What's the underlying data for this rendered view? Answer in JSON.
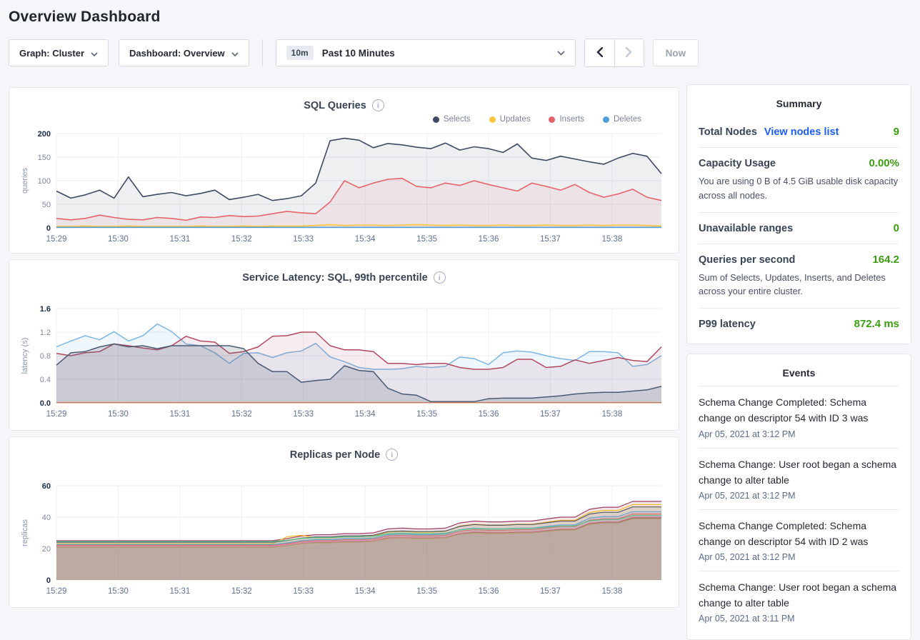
{
  "page": {
    "title": "Overview Dashboard"
  },
  "colors": {
    "accent_green": "#3a9f0f",
    "link_blue": "#1a5ef5",
    "title_navy": "#394455"
  },
  "controls": {
    "graph_selector": "Graph: Cluster",
    "dashboard_selector": "Dashboard: Overview",
    "time_window_badge": "10m",
    "time_window_label": "Past 10 Minutes",
    "now_label": "Now"
  },
  "chart_data": [
    {
      "type": "area",
      "title": "SQL Queries",
      "ylabel": "queries",
      "ymax": 200,
      "yticks": [
        "0",
        "50",
        "100",
        "150",
        "200"
      ],
      "xticks": [
        "15:29",
        "15:30",
        "15:31",
        "15:32",
        "15:33",
        "15:34",
        "15:35",
        "15:36",
        "15:37",
        "15:38"
      ],
      "xspan_minutes": 9.8,
      "line_width": 1.6,
      "legend": [
        {
          "label": "Selects",
          "color": "#3e4a63"
        },
        {
          "label": "Updates",
          "color": "#ffc53d"
        },
        {
          "label": "Inserts",
          "color": "#e5646a"
        },
        {
          "label": "Deletes",
          "color": "#509ed8"
        }
      ],
      "series": [
        {
          "name": "Selects",
          "color": "#3e4a63",
          "fill_opacity": 0.09,
          "values": [
            78,
            63,
            70,
            80,
            63,
            108,
            66,
            71,
            75,
            68,
            73,
            80,
            60,
            65,
            71,
            58,
            62,
            68,
            95,
            185,
            190,
            186,
            170,
            179,
            176,
            171,
            168,
            180,
            165,
            172,
            168,
            160,
            178,
            148,
            143,
            152,
            146,
            140,
            135,
            148,
            158,
            152,
            115
          ]
        },
        {
          "name": "Inserts",
          "color": "#e5646a",
          "fill_opacity": 0.09,
          "values": [
            20,
            17,
            20,
            27,
            22,
            18,
            17,
            22,
            20,
            16,
            23,
            22,
            26,
            24,
            25,
            30,
            35,
            32,
            30,
            55,
            100,
            85,
            95,
            103,
            105,
            88,
            85,
            95,
            90,
            100,
            92,
            85,
            78,
            95,
            88,
            80,
            92,
            75,
            65,
            72,
            82,
            65,
            58
          ]
        },
        {
          "name": "Updates",
          "color": "#ffc53d",
          "fill_opacity": 0.12,
          "values": [
            3,
            3,
            4,
            3,
            3,
            4,
            3,
            3,
            3,
            3,
            4,
            3,
            3,
            4,
            3,
            4,
            4,
            4,
            5,
            7,
            5,
            6,
            6,
            5,
            6,
            7,
            6,
            5,
            6,
            5,
            5,
            6,
            5,
            5,
            6,
            5,
            5,
            6,
            5,
            6,
            6,
            5,
            4
          ]
        },
        {
          "name": "Deletes",
          "color": "#509ed8",
          "fill_opacity": 0.1,
          "values": [
            1,
            1,
            1,
            1,
            1,
            1,
            1,
            1,
            1,
            1,
            1,
            1,
            1,
            1,
            1,
            1,
            1,
            1,
            1,
            1,
            1,
            1,
            1,
            1,
            1,
            1,
            1,
            1,
            1,
            1,
            1,
            1,
            1,
            1,
            1,
            1,
            1,
            1,
            1,
            1,
            1,
            1,
            1
          ]
        }
      ]
    },
    {
      "type": "area",
      "title": "Service Latency: SQL, 99th percentile",
      "ylabel": "latency (s)",
      "ymax": 1.6,
      "yticks": [
        "0.0",
        "0.4",
        "0.8",
        "1.2",
        "1.6"
      ],
      "xticks": [
        "15:29",
        "15:30",
        "15:31",
        "15:32",
        "15:33",
        "15:34",
        "15:35",
        "15:36",
        "15:37",
        "15:38"
      ],
      "xspan_minutes": 9.8,
      "line_width": 1.5,
      "series": [
        {
          "name": "series-1",
          "color": "#7cb7e3",
          "fill_opacity": 0.12,
          "values": [
            0.95,
            1.05,
            1.14,
            1.07,
            1.21,
            1.05,
            1.14,
            1.34,
            1.21,
            1.0,
            0.97,
            0.85,
            0.67,
            0.84,
            0.85,
            0.77,
            0.85,
            0.88,
            1.01,
            0.78,
            0.7,
            0.6,
            0.57,
            0.57,
            0.58,
            0.62,
            0.6,
            0.62,
            0.78,
            0.75,
            0.65,
            0.85,
            0.88,
            0.86,
            0.8,
            0.75,
            0.72,
            0.87,
            0.87,
            0.85,
            0.62,
            0.65,
            0.8
          ]
        },
        {
          "name": "series-2",
          "color": "#b2485f",
          "fill_opacity": 0.1,
          "values": [
            0.84,
            0.8,
            0.85,
            0.87,
            1.0,
            0.97,
            0.93,
            0.9,
            0.97,
            1.13,
            1.05,
            1.03,
            0.84,
            0.87,
            0.95,
            1.13,
            1.14,
            1.2,
            1.2,
            0.97,
            0.9,
            0.9,
            0.87,
            0.67,
            0.67,
            0.65,
            0.67,
            0.67,
            0.6,
            0.57,
            0.57,
            0.6,
            0.74,
            0.74,
            0.6,
            0.62,
            0.73,
            0.67,
            0.72,
            0.77,
            0.72,
            0.7,
            0.95
          ]
        },
        {
          "name": "series-3",
          "color": "#4a5a75",
          "fill_opacity": 0.18,
          "values": [
            0.64,
            0.85,
            0.87,
            0.95,
            1.0,
            0.95,
            0.97,
            0.92,
            0.97,
            0.97,
            0.97,
            0.97,
            0.97,
            0.92,
            0.67,
            0.53,
            0.53,
            0.35,
            0.38,
            0.4,
            0.63,
            0.55,
            0.53,
            0.25,
            0.15,
            0.13,
            0.02,
            0.02,
            0.02,
            0.02,
            0.07,
            0.08,
            0.08,
            0.08,
            0.1,
            0.12,
            0.15,
            0.17,
            0.18,
            0.18,
            0.2,
            0.22,
            0.28
          ]
        },
        {
          "name": "series-4",
          "color": "#c57b57",
          "fill_opacity": 0.05,
          "values": [
            0.005,
            0.005,
            0.005,
            0.005,
            0.005,
            0.005,
            0.005,
            0.005,
            0.005,
            0.005,
            0.005,
            0.005,
            0.005,
            0.005,
            0.005,
            0.005,
            0.005,
            0.005,
            0.005,
            0.005,
            0.005,
            0.005,
            0.005,
            0.005,
            0.005,
            0.005,
            0.005,
            0.005,
            0.005,
            0.005,
            0.005,
            0.005,
            0.005,
            0.005,
            0.005,
            0.005,
            0.005,
            0.005,
            0.005,
            0.005,
            0.005,
            0.005,
            0.005
          ]
        }
      ]
    },
    {
      "type": "area",
      "title": "Replicas per Node",
      "ylabel": "replicas",
      "ymax": 60,
      "yticks": [
        "0",
        "20",
        "40",
        "60"
      ],
      "xticks": [
        "15:29",
        "15:30",
        "15:31",
        "15:32",
        "15:33",
        "15:34",
        "15:35",
        "15:36",
        "15:37",
        "15:38"
      ],
      "xspan_minutes": 9.8,
      "line_width": 1.2,
      "series": [
        {
          "name": "series-1",
          "color": "#9e3d64",
          "fill_opacity": 0.12,
          "values": [
            25,
            25,
            25,
            25,
            25,
            25,
            25,
            25,
            25,
            25,
            25,
            25,
            25,
            25,
            25,
            25,
            26.3,
            28,
            28.8,
            28.8,
            29.5,
            29.5,
            30,
            32.5,
            33,
            32.5,
            32.5,
            33,
            36.3,
            37.5,
            37,
            37,
            37.5,
            37.5,
            38.8,
            40,
            40,
            45,
            46.3,
            46.3,
            50,
            50,
            50
          ]
        },
        {
          "name": "series-2",
          "color": "#f5bd2e",
          "fill_opacity": 0.12,
          "values": [
            23,
            23,
            23,
            23,
            23,
            23,
            23,
            23,
            23,
            23,
            23,
            23,
            23,
            23,
            23,
            23,
            27.5,
            28.5,
            26.8,
            26.8,
            27.5,
            27.5,
            28,
            30.5,
            31,
            30.5,
            30.5,
            31,
            34.3,
            35.5,
            35,
            35,
            35.5,
            35.5,
            36.8,
            38,
            38,
            43,
            44.3,
            44.3,
            48,
            48,
            48
          ]
        },
        {
          "name": "series-3",
          "color": "#545a66",
          "fill_opacity": 0.12,
          "values": [
            24,
            24,
            24,
            24,
            24,
            24,
            24,
            24,
            24,
            24,
            24,
            24,
            24,
            24,
            24,
            24,
            25.1,
            26.7,
            27.4,
            27.4,
            28.1,
            28.1,
            28.5,
            30.8,
            31.2,
            30.8,
            30.8,
            31.2,
            34.1,
            35.3,
            34.8,
            34.8,
            35.3,
            35.3,
            36.4,
            37.5,
            37.5,
            42,
            43.1,
            43.1,
            46.5,
            46.5,
            46.5
          ]
        },
        {
          "name": "series-4",
          "color": "#6b9fd0",
          "fill_opacity": 0.12,
          "values": [
            22.5,
            22.5,
            22.5,
            22.5,
            22.5,
            22.5,
            22.5,
            22.5,
            22.5,
            22.5,
            22.5,
            22.5,
            22.5,
            22.5,
            22.5,
            22.5,
            23.6,
            25,
            25.7,
            25.7,
            26.3,
            26.3,
            26.7,
            28.8,
            29.2,
            28.8,
            28.8,
            29.2,
            32,
            33,
            32.6,
            32.6,
            33,
            33,
            34.1,
            35.1,
            35.1,
            39.3,
            40.4,
            40.4,
            43.5,
            43.5,
            43.5
          ]
        },
        {
          "name": "series-5",
          "color": "#e06c70",
          "fill_opacity": 0.12,
          "values": [
            22,
            22,
            22,
            22,
            22,
            22,
            22,
            22,
            22,
            22,
            22,
            22,
            22,
            22,
            22,
            22,
            23,
            24.4,
            25,
            25,
            25.6,
            25.6,
            26,
            28,
            28.4,
            28,
            28,
            28.4,
            31,
            32,
            31.6,
            31.6,
            32,
            32,
            33,
            34,
            34,
            38,
            39,
            39,
            42,
            42,
            42
          ]
        },
        {
          "name": "series-6",
          "color": "#5bbd8a",
          "fill_opacity": 0.12,
          "values": [
            24.5,
            24.5,
            24.5,
            24.5,
            24.5,
            24.5,
            24.5,
            24.5,
            24.5,
            24.5,
            24.5,
            24.5,
            24.5,
            24.5,
            24.5,
            24.5,
            25.3,
            26.5,
            27,
            27,
            27.5,
            27.5,
            27.8,
            29.5,
            29.8,
            29.5,
            29.5,
            29.8,
            31.9,
            32.8,
            32.4,
            32.4,
            32.8,
            32.8,
            33.6,
            34.4,
            34.4,
            37.7,
            38.5,
            38.5,
            41,
            41,
            41
          ]
        },
        {
          "name": "series-7",
          "color": "#e883b6",
          "fill_opacity": 0.12,
          "values": [
            21.5,
            21.5,
            21.5,
            21.5,
            21.5,
            21.5,
            21.5,
            21.5,
            21.5,
            21.5,
            21.5,
            21.5,
            21.5,
            21.5,
            21.5,
            21.5,
            22.4,
            23.7,
            24.3,
            24.3,
            24.8,
            24.8,
            25.2,
            27.1,
            27.4,
            27.1,
            27.1,
            27.4,
            29.8,
            30.8,
            30.4,
            30.4,
            30.8,
            30.8,
            31.7,
            32.6,
            32.6,
            36.3,
            37.2,
            37.2,
            40,
            40,
            40
          ]
        },
        {
          "name": "series-8",
          "color": "#8d6e57",
          "fill_opacity": 0.12,
          "values": [
            21,
            21,
            21,
            21,
            21,
            21,
            21,
            21,
            21,
            21,
            21,
            21,
            21,
            21,
            21,
            21,
            21.9,
            23.2,
            23.8,
            23.8,
            24.3,
            24.3,
            24.7,
            26.6,
            26.9,
            26.6,
            26.6,
            26.9,
            29.3,
            30.3,
            29.9,
            29.9,
            30.3,
            30.3,
            31.2,
            32.1,
            32.1,
            35.8,
            36.7,
            36.7,
            39.5,
            39.5,
            39.5
          ]
        },
        {
          "name": "series-9",
          "color": "#b59a6e",
          "fill_opacity": 0.12,
          "values": [
            21,
            21,
            21,
            21,
            21,
            21,
            21,
            21,
            21,
            21,
            21,
            21,
            21,
            21,
            21,
            21,
            21.9,
            23.2,
            23.7,
            23.7,
            24.2,
            24.2,
            24.6,
            26.4,
            26.8,
            26.4,
            26.4,
            26.8,
            29.1,
            30,
            29.6,
            29.6,
            30,
            30,
            30.9,
            31.8,
            31.8,
            35.4,
            36.3,
            36.3,
            39,
            39,
            39
          ]
        }
      ]
    }
  ],
  "summary": {
    "title": "Summary",
    "items": [
      {
        "label": "Total Nodes",
        "link": "View nodes list",
        "value": "9"
      },
      {
        "label": "Capacity Usage",
        "value": "0.00%",
        "subtext": "You are using 0 B of 4.5 GiB usable disk capacity across all nodes."
      },
      {
        "label": "Unavailable ranges",
        "value": "0"
      },
      {
        "label": "Queries per second",
        "value": "164.2",
        "subtext": "Sum of Selects, Updates, Inserts, and Deletes across your entire cluster."
      },
      {
        "label": "P99 latency",
        "value": "872.4 ms"
      }
    ]
  },
  "events": {
    "title": "Events",
    "items": [
      {
        "message": "Schema Change Completed: Schema change on descriptor 54 with ID 3 was",
        "timestamp": "Apr 05, 2021 at 3:12 PM"
      },
      {
        "message": "Schema Change: User root began a schema change to alter table",
        "timestamp": "Apr 05, 2021 at 3:12 PM"
      },
      {
        "message": "Schema Change Completed: Schema change on descriptor 54 with ID 2 was",
        "timestamp": "Apr 05, 2021 at 3:12 PM"
      },
      {
        "message": "Schema Change: User root began a schema change to alter table",
        "timestamp": "Apr 05, 2021 at 3:11 PM"
      }
    ]
  }
}
